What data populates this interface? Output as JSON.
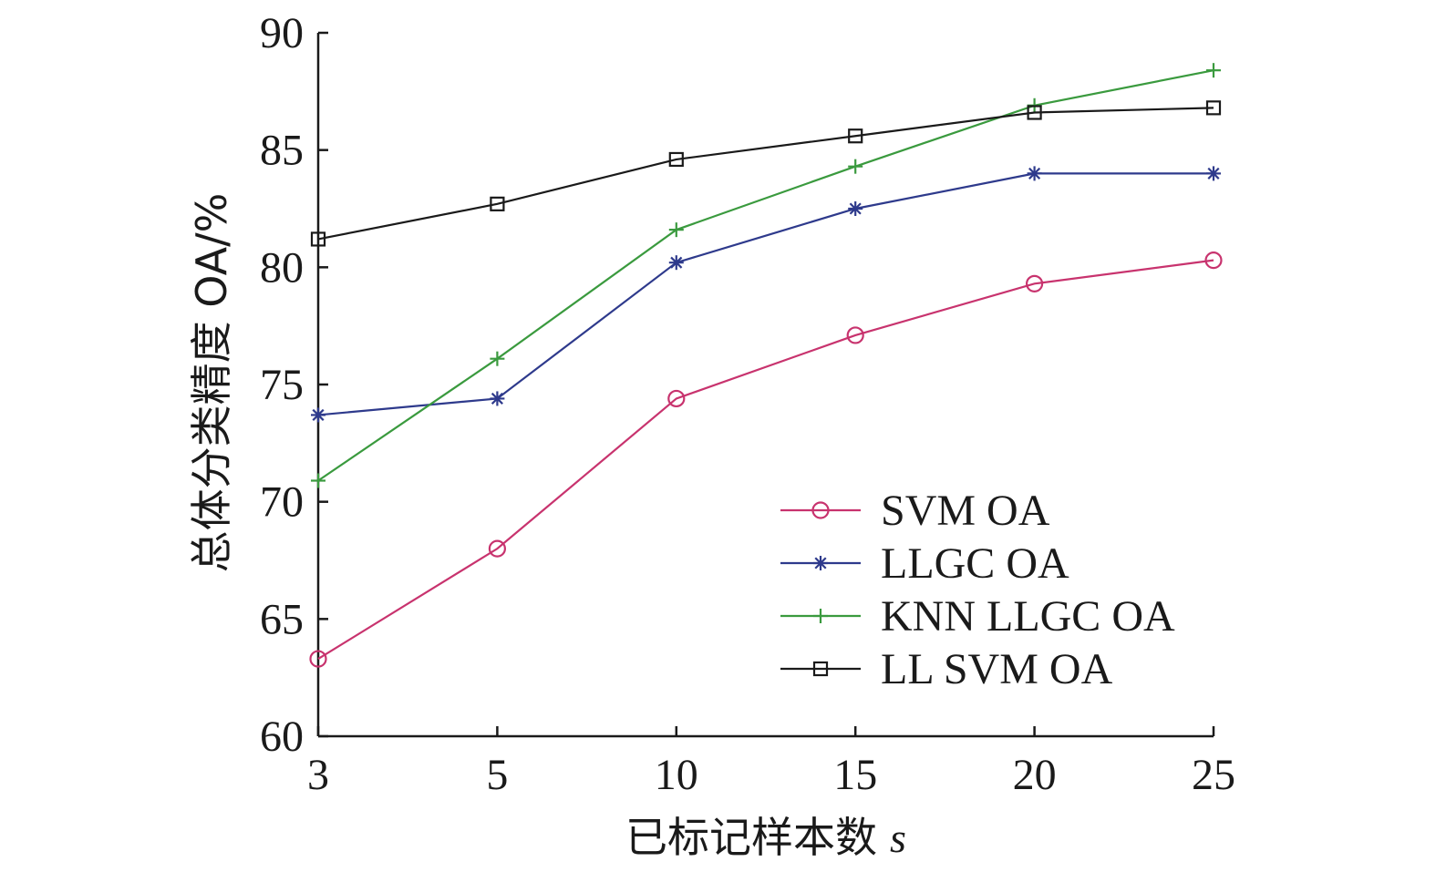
{
  "chart_data": {
    "type": "line",
    "title": "",
    "xlabel": "已标记样本数",
    "xlabel_var": "s",
    "ylabel": "总体分类精度 OA/%",
    "categories": [
      "3",
      "5",
      "10",
      "15",
      "20",
      "25"
    ],
    "yticks": [
      "60",
      "65",
      "70",
      "75",
      "80",
      "85",
      "90"
    ],
    "ylim": [
      60,
      90
    ],
    "grid": false,
    "legend_position": "bottom-right",
    "series": [
      {
        "name": "SVM OA",
        "color": "#c8336e",
        "marker": "circle",
        "values": [
          63.3,
          68.0,
          74.4,
          77.1,
          79.3,
          80.3
        ]
      },
      {
        "name": "LLGC OA",
        "color": "#2e3a8c",
        "marker": "asterisk",
        "values": [
          73.7,
          74.4,
          80.2,
          82.5,
          84.0,
          84.0
        ]
      },
      {
        "name": "KNN LLGC OA",
        "color": "#3a9a3e",
        "marker": "plus",
        "values": [
          70.9,
          76.1,
          81.6,
          84.3,
          86.9,
          88.4
        ]
      },
      {
        "name": "LL SVM OA",
        "color": "#1a1a1a",
        "marker": "square",
        "values": [
          81.2,
          82.7,
          84.6,
          85.6,
          86.6,
          86.8
        ]
      }
    ]
  }
}
